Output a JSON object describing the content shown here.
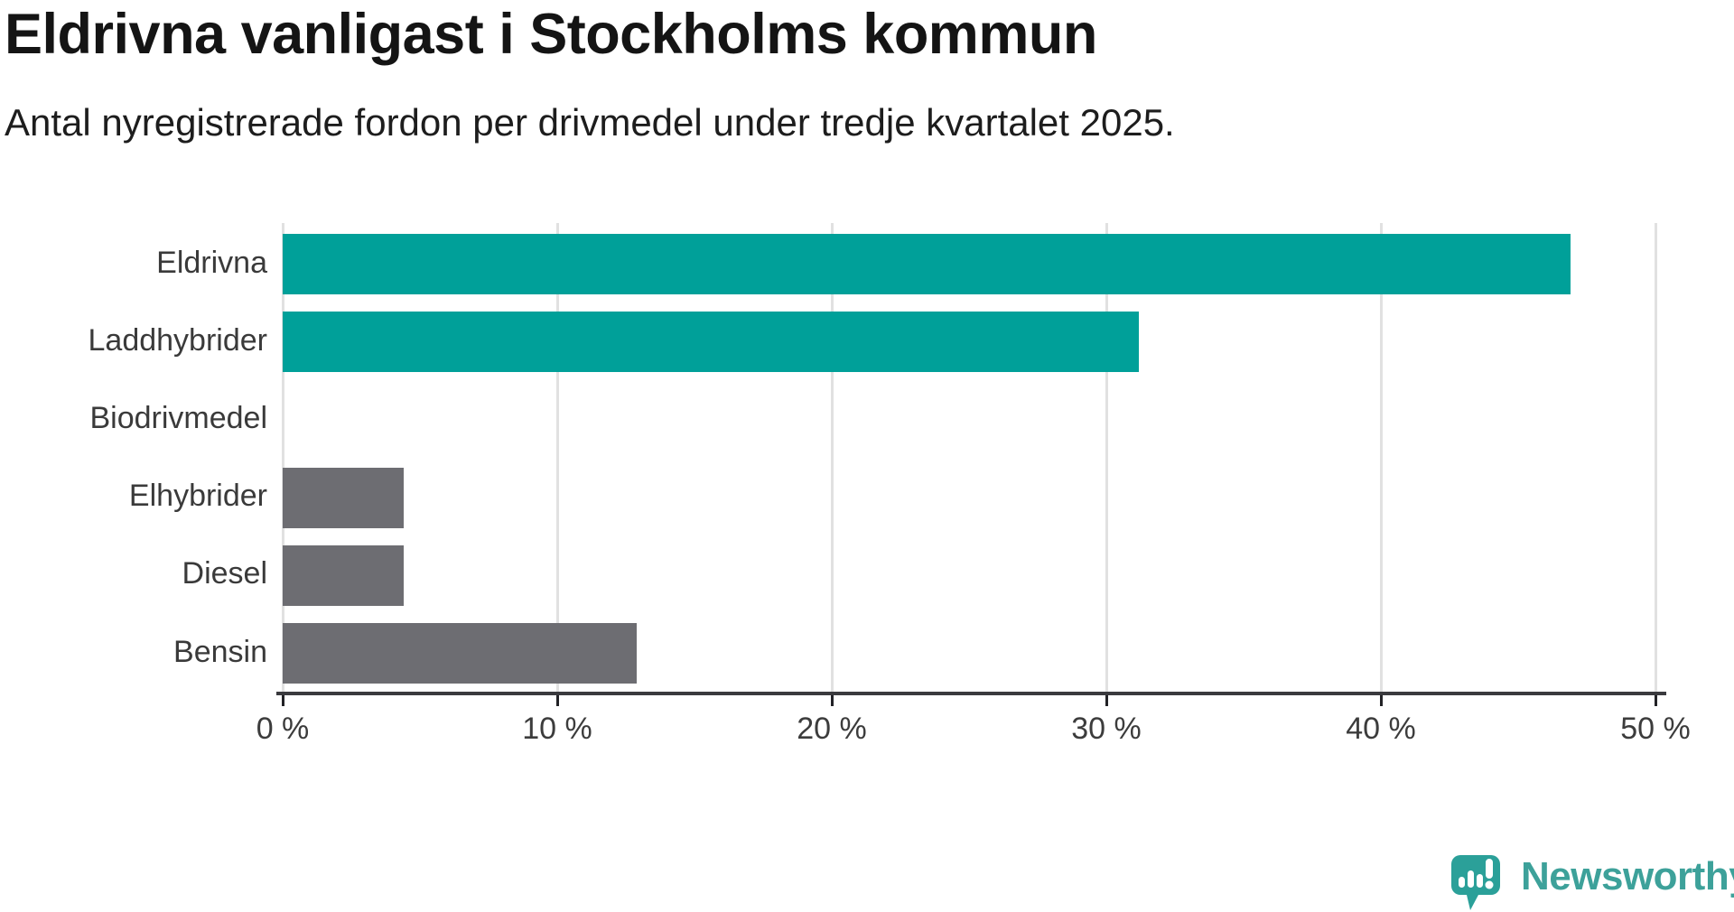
{
  "header": {
    "title": "Eldrivna vanligast i Stockholms kommun",
    "subtitle": "Antal nyregistrerade fordon per drivmedel under tredje kvartalet 2025."
  },
  "chart_data": {
    "type": "bar",
    "orientation": "horizontal",
    "title": "Eldrivna vanligast i Stockholms kommun",
    "subtitle": "Antal nyregistrerade fordon per drivmedel under tredje kvartalet 2025.",
    "categories": [
      "Eldrivna",
      "Laddhybrider",
      "Biodrivmedel",
      "Elhybrider",
      "Diesel",
      "Bensin"
    ],
    "values": [
      46.9,
      31.2,
      0,
      4.4,
      4.4,
      12.9
    ],
    "unit": "%",
    "xlim": [
      0,
      50
    ],
    "x_ticks": [
      0,
      10,
      20,
      30,
      40,
      50
    ],
    "x_tick_labels": [
      "0 %",
      "10 %",
      "20 %",
      "30 %",
      "40 %",
      "50 %"
    ],
    "grid": true,
    "legend": "none",
    "bar_colors": [
      "#00a099",
      "#00a099",
      "#00a099",
      "#6d6d72",
      "#6d6d72",
      "#6d6d72"
    ]
  },
  "colors": {
    "highlight_teal": "#00a099",
    "neutral_gray": "#6d6d72",
    "gridline": "#e1e1e1",
    "axis": "#3a3a3e",
    "brand_teal": "#3da19a"
  },
  "footer": {
    "brand": "Newsworthy",
    "logo_icon": "newsworthy-speech-bubble-barchart-icon"
  }
}
